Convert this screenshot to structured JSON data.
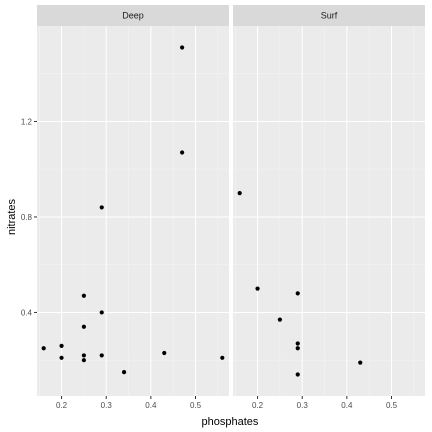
{
  "chart_data": {
    "type": "scatter",
    "facet_by": "panel",
    "xlabel": "phosphates",
    "ylabel": "nitrates",
    "xlim": [
      0.145,
      0.575
    ],
    "ylim": [
      0.05,
      1.6
    ],
    "x_ticks": [
      0.2,
      0.3,
      0.4,
      0.5
    ],
    "x_tick_labels": [
      "0.2",
      "0.3",
      "0.4",
      "0.5"
    ],
    "y_ticks": [
      0.4,
      0.8,
      1.2
    ],
    "y_tick_labels": [
      "0.4",
      "0.8",
      "1.2"
    ],
    "grid": true,
    "panels": [
      {
        "name": "Deep",
        "points": [
          {
            "x": 0.16,
            "y": 0.25
          },
          {
            "x": 0.2,
            "y": 0.26
          },
          {
            "x": 0.2,
            "y": 0.21
          },
          {
            "x": 0.25,
            "y": 0.47
          },
          {
            "x": 0.25,
            "y": 0.34
          },
          {
            "x": 0.25,
            "y": 0.22
          },
          {
            "x": 0.25,
            "y": 0.2
          },
          {
            "x": 0.29,
            "y": 0.84
          },
          {
            "x": 0.29,
            "y": 0.4
          },
          {
            "x": 0.29,
            "y": 0.22
          },
          {
            "x": 0.34,
            "y": 0.15
          },
          {
            "x": 0.43,
            "y": 0.23
          },
          {
            "x": 0.47,
            "y": 1.51
          },
          {
            "x": 0.47,
            "y": 1.07
          },
          {
            "x": 0.56,
            "y": 0.21
          }
        ]
      },
      {
        "name": "Surf",
        "points": [
          {
            "x": 0.16,
            "y": 0.9
          },
          {
            "x": 0.2,
            "y": 0.5
          },
          {
            "x": 0.25,
            "y": 0.37
          },
          {
            "x": 0.29,
            "y": 0.48
          },
          {
            "x": 0.29,
            "y": 0.27
          },
          {
            "x": 0.29,
            "y": 0.25
          },
          {
            "x": 0.29,
            "y": 0.14
          },
          {
            "x": 0.43,
            "y": 0.19
          }
        ]
      }
    ],
    "colors": {
      "panel_bg": "#ebebeb",
      "grid_major": "#ffffff",
      "grid_minor": "#f4f4f4",
      "strip_bg": "#d9d9d9",
      "point": "#000000",
      "tick": "#333333"
    }
  }
}
